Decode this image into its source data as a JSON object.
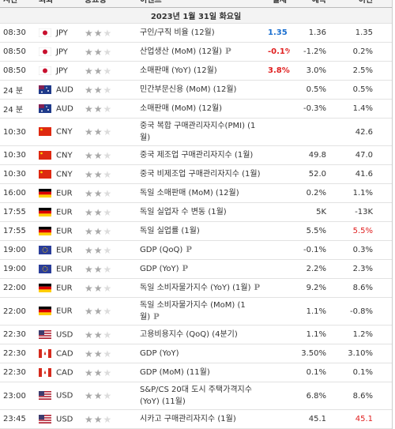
{
  "header": {
    "columns": [
      "시간",
      "외화",
      "중요성",
      "이벤트",
      "실제",
      "예측",
      "이전"
    ]
  },
  "date": "2023년 1월 31일 화요일",
  "rows": [
    {
      "time": "08:30",
      "currency": "JPY",
      "importance": 2,
      "event": "구인/구직 비율 (12월)",
      "actual": "1.35",
      "actual_color": "#1a6fd0",
      "forecast": "1.36",
      "previous": "1.35"
    },
    {
      "time": "08:50",
      "currency": "JPY",
      "importance": 2,
      "event": "산업생산 (MoM) (12월)",
      "note": "P",
      "actual": "-0.1%",
      "actual_color": "#e02020",
      "forecast": "-1.2%",
      "previous": "0.2%"
    },
    {
      "time": "08:50",
      "currency": "JPY",
      "importance": 2,
      "event": "소매판매 (YoY) (12월)",
      "actual": "3.8%",
      "actual_color": "#e02020",
      "forecast": "3.0%",
      "previous": "2.5%"
    },
    {
      "time": "24 분",
      "currency": "AUD",
      "importance": 2,
      "event": "민간부문신용 (MoM) (12월)",
      "forecast": "0.5%",
      "previous": "0.5%"
    },
    {
      "time": "24 분",
      "currency": "AUD",
      "importance": 2,
      "event": "소매판매 (MoM) (12월)",
      "forecast": "-0.3%",
      "previous": "1.4%"
    },
    {
      "time": "10:30",
      "currency": "CNY",
      "importance": 2,
      "event": "중국 복합 구매관리자지수(PMI) (1월)",
      "previous": "42.6"
    },
    {
      "time": "10:30",
      "currency": "CNY",
      "importance": 2,
      "event": "중국 제조업 구매관리자지수 (1월)",
      "forecast": "49.8",
      "previous": "47.0"
    },
    {
      "time": "10:30",
      "currency": "CNY",
      "importance": 2,
      "event": "중국 비제조업 구매관리자지수 (1월)",
      "forecast": "52.0",
      "previous": "41.6"
    },
    {
      "time": "16:00",
      "currency": "EUR",
      "importance": 2,
      "event": "독일 소매판매 (MoM) (12월)",
      "forecast": "0.2%",
      "previous": "1.1%"
    },
    {
      "time": "17:55",
      "currency": "EUR",
      "importance": 2,
      "event": "독일 실업자 수 변동 (1월)",
      "forecast": "5K",
      "previous": "-13K"
    },
    {
      "time": "17:55",
      "currency": "EUR",
      "importance": 2,
      "event": "독일 실업률 (1월)",
      "forecast": "5.5%",
      "previous": "5.5%",
      "previous_color": "#e02020"
    },
    {
      "time": "19:00",
      "currency": "EUR",
      "importance": 2,
      "event": "GDP (QoQ)",
      "note": "P",
      "forecast": "-0.1%",
      "previous": "0.3%"
    },
    {
      "time": "19:00",
      "currency": "EUR",
      "importance": 2,
      "event": "GDP (YoY)",
      "note": "P",
      "forecast": "2.2%",
      "previous": "2.3%"
    },
    {
      "time": "22:00",
      "currency": "EUR",
      "importance": 2,
      "event": "독일 소비자물가지수 (YoY) (1월)",
      "note": "P",
      "forecast": "9.2%",
      "previous": "8.6%"
    },
    {
      "time": "22:00",
      "currency": "EUR",
      "importance": 2,
      "event": "독일 소비자물가지수 (MoM) (1월)",
      "note": "P",
      "forecast": "1.1%",
      "previous": "-0.8%"
    },
    {
      "time": "22:30",
      "currency": "USD",
      "importance": 2,
      "event": "고용비용지수 (QoQ) (4분기)",
      "forecast": "1.1%",
      "previous": "1.2%"
    },
    {
      "time": "22:30",
      "currency": "CAD",
      "importance": 2,
      "event": "GDP (YoY)",
      "forecast": "3.50%",
      "previous": "3.10%"
    },
    {
      "time": "22:30",
      "currency": "CAD",
      "importance": 2,
      "event": "GDP (MoM) (11월)",
      "forecast": "0.1%",
      "previous": "0.1%"
    },
    {
      "time": "23:00",
      "currency": "USD",
      "importance": 2,
      "event": "S&P/CS 20대 도시 주택가격지수 (YoY) (11월)",
      "forecast": "6.8%",
      "previous": "8.6%"
    },
    {
      "time": "23:45",
      "currency": "USD",
      "importance": 2,
      "event": "시카고 구매관리자지수 (1월)",
      "forecast": "45.1",
      "previous": "45.1",
      "previous_color": "#e02020"
    }
  ]
}
